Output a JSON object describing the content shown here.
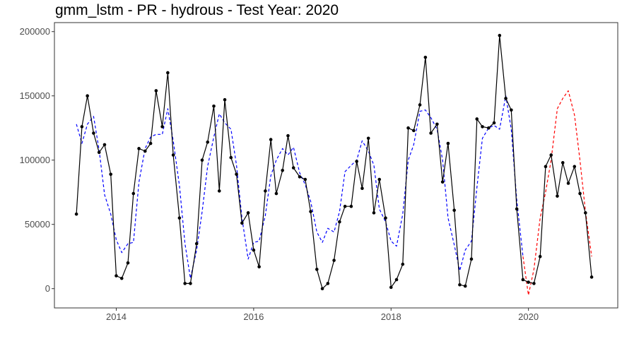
{
  "chart_data": {
    "type": "line",
    "title": "gmm_lstm - PR - hydrous - Test Year: 2020",
    "xlabel": "",
    "ylabel": "",
    "xlim": [
      2013.1,
      2021.3
    ],
    "ylim": [
      -15000,
      207000
    ],
    "grid": false,
    "x_ticks": [
      {
        "value": 2014,
        "label": "2014"
      },
      {
        "value": 2016,
        "label": "2016"
      },
      {
        "value": 2018,
        "label": "2018"
      },
      {
        "value": 2020,
        "label": "2020"
      }
    ],
    "y_ticks": [
      {
        "value": 0,
        "label": "0"
      },
      {
        "value": 50000,
        "label": "50000"
      },
      {
        "value": 100000,
        "label": "100000"
      },
      {
        "value": 150000,
        "label": "150000"
      },
      {
        "value": 200000,
        "label": "200000"
      }
    ],
    "series": [
      {
        "color": "#000000",
        "style": "solid",
        "markers": true,
        "x": [
          2013.42,
          2013.5,
          2013.58,
          2013.67,
          2013.75,
          2013.83,
          2013.92,
          2014.0,
          2014.08,
          2014.17,
          2014.25,
          2014.33,
          2014.42,
          2014.5,
          2014.58,
          2014.67,
          2014.75,
          2014.83,
          2014.92,
          2015.0,
          2015.08,
          2015.17,
          2015.25,
          2015.33,
          2015.42,
          2015.5,
          2015.58,
          2015.67,
          2015.75,
          2015.83,
          2015.92,
          2016.0,
          2016.08,
          2016.17,
          2016.25,
          2016.33,
          2016.42,
          2016.5,
          2016.58,
          2016.67,
          2016.75,
          2016.83,
          2016.92,
          2017.0,
          2017.08,
          2017.17,
          2017.25,
          2017.33,
          2017.42,
          2017.5,
          2017.58,
          2017.67,
          2017.75,
          2017.83,
          2017.92,
          2018.0,
          2018.08,
          2018.17,
          2018.25,
          2018.33,
          2018.42,
          2018.5,
          2018.58,
          2018.67,
          2018.75,
          2018.83,
          2018.92,
          2019.0,
          2019.08,
          2019.17,
          2019.25,
          2019.33,
          2019.42,
          2019.5,
          2019.58,
          2019.67,
          2019.75,
          2019.83,
          2019.92,
          2020.0,
          2020.08,
          2020.17,
          2020.25,
          2020.33,
          2020.42,
          2020.5,
          2020.58,
          2020.67,
          2020.75,
          2020.83,
          2020.92
        ],
        "values": [
          58000,
          126000,
          150000,
          121000,
          106000,
          112000,
          89000,
          10000,
          8000,
          20000,
          74000,
          109000,
          107000,
          113000,
          154000,
          126000,
          168000,
          104000,
          55000,
          4000,
          4000,
          35000,
          100000,
          114000,
          142000,
          76000,
          147000,
          102000,
          89000,
          51000,
          59000,
          30000,
          17000,
          76000,
          116000,
          74000,
          92000,
          119000,
          94000,
          87000,
          85000,
          60000,
          15000,
          0,
          4000,
          22000,
          52000,
          64000,
          64000,
          99000,
          78000,
          117000,
          59000,
          85000,
          55000,
          1000,
          7000,
          19000,
          125000,
          123000,
          143000,
          180000,
          121000,
          128000,
          83000,
          113000,
          61000,
          3000,
          2000,
          23000,
          132000,
          126000,
          125000,
          129000,
          197000,
          148000,
          139000,
          62000,
          7000,
          5000,
          4000,
          25000,
          95000,
          104000,
          72000,
          98000,
          82000,
          95000,
          74000,
          59000,
          9000
        ]
      },
      {
        "color": "#0000ff",
        "style": "dashed",
        "markers": false,
        "x": [
          2013.42,
          2013.5,
          2013.58,
          2013.67,
          2013.75,
          2013.83,
          2013.92,
          2014.0,
          2014.08,
          2014.17,
          2014.25,
          2014.33,
          2014.42,
          2014.5,
          2014.58,
          2014.67,
          2014.75,
          2014.83,
          2014.92,
          2015.0,
          2015.08,
          2015.17,
          2015.25,
          2015.33,
          2015.42,
          2015.5,
          2015.58,
          2015.67,
          2015.75,
          2015.83,
          2015.92,
          2016.0,
          2016.08,
          2016.17,
          2016.25,
          2016.33,
          2016.42,
          2016.5,
          2016.58,
          2016.67,
          2016.75,
          2016.83,
          2016.92,
          2017.0,
          2017.08,
          2017.17,
          2017.25,
          2017.33,
          2017.42,
          2017.5,
          2017.58,
          2017.67,
          2017.75,
          2017.83,
          2017.92,
          2018.0,
          2018.08,
          2018.17,
          2018.25,
          2018.33,
          2018.42,
          2018.5,
          2018.58,
          2018.67,
          2018.75,
          2018.83,
          2018.92,
          2019.0,
          2019.08,
          2019.17,
          2019.25,
          2019.33,
          2019.42,
          2019.5,
          2019.58,
          2019.67,
          2019.75,
          2019.83,
          2019.92
        ],
        "values": [
          128000,
          113000,
          128000,
          134000,
          108000,
          73000,
          58000,
          38000,
          28000,
          35000,
          36000,
          83000,
          109000,
          118000,
          120000,
          120000,
          140000,
          115000,
          80000,
          35000,
          8000,
          30000,
          60000,
          95000,
          118000,
          136000,
          129000,
          124000,
          96000,
          55000,
          23000,
          36000,
          37000,
          57000,
          88000,
          100000,
          109000,
          104000,
          110000,
          90000,
          81000,
          68000,
          44000,
          36000,
          47000,
          44000,
          60000,
          91000,
          96000,
          100000,
          115000,
          107000,
          96000,
          62000,
          52000,
          37000,
          33000,
          58000,
          100000,
          112000,
          138000,
          139000,
          133000,
          124000,
          100000,
          55000,
          34000,
          14000,
          30000,
          37000,
          79000,
          117000,
          125000,
          127000,
          124000,
          150000,
          124000,
          69000,
          25000
        ]
      },
      {
        "color": "#ff0000",
        "style": "dashed",
        "markers": false,
        "x": [
          2019.92,
          2020.0,
          2020.08,
          2020.17,
          2020.25,
          2020.33,
          2020.42,
          2020.5,
          2020.58,
          2020.67,
          2020.75,
          2020.83,
          2020.92
        ],
        "values": [
          25000,
          -5000,
          15000,
          55000,
          75000,
          100000,
          140000,
          148000,
          154000,
          135000,
          100000,
          60000,
          25000
        ]
      }
    ]
  }
}
